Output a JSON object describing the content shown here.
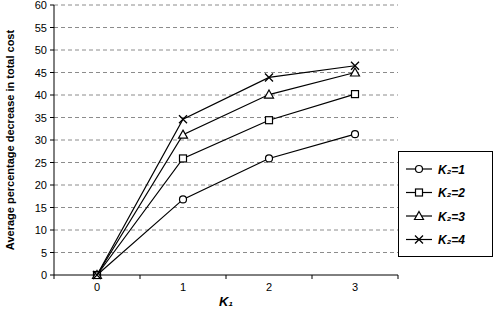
{
  "chart_data": {
    "type": "line",
    "x_label": "K₁",
    "y_label": "Average percentage decrease in total cost",
    "categories": [
      "0",
      "1",
      "2",
      "3"
    ],
    "series": [
      {
        "name": "K₂=1",
        "color": "#000000",
        "marker": "circle",
        "values": [
          0,
          16.8,
          25.9,
          31.3
        ]
      },
      {
        "name": "K₂=2",
        "color": "#000000",
        "marker": "square",
        "values": [
          0,
          25.9,
          34.4,
          40.2
        ]
      },
      {
        "name": "K₂=3",
        "color": "#000000",
        "marker": "triangle",
        "values": [
          0,
          31.2,
          40.1,
          45.0
        ]
      },
      {
        "name": "K₂=4",
        "color": "#000000",
        "marker": "x",
        "values": [
          0,
          34.6,
          43.9,
          46.5
        ]
      }
    ],
    "ylim": [
      0,
      60
    ],
    "yticks": [
      0,
      5,
      10,
      15,
      20,
      25,
      30,
      35,
      40,
      45,
      50,
      55,
      60
    ],
    "grid": true,
    "legend": "right"
  }
}
